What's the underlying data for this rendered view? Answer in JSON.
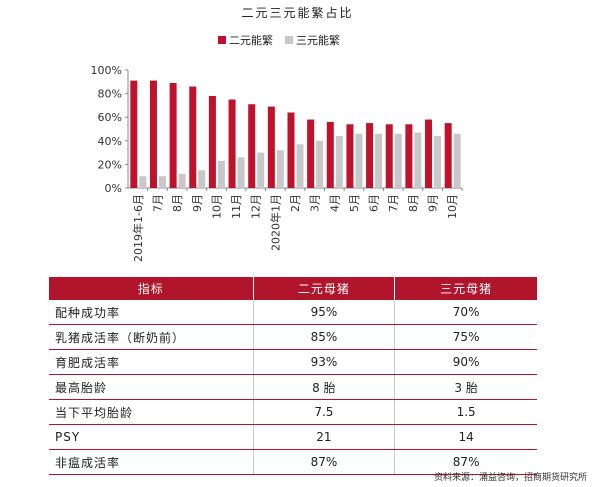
{
  "chart_data": {
    "type": "bar",
    "title": "二元三元能繁占比",
    "categories": [
      "2019年1-6月",
      "7月",
      "8月",
      "9月",
      "10月",
      "11月",
      "12月",
      "2020年1月",
      "2月",
      "3月",
      "4月",
      "5月",
      "6月",
      "7月",
      "8月",
      "9月",
      "10月"
    ],
    "series": [
      {
        "name": "二元能繁",
        "color": "#c0122c",
        "values": [
          91,
          91,
          89,
          86,
          78,
          75,
          71,
          69,
          64,
          58,
          56,
          54,
          55,
          54,
          54,
          58,
          55
        ]
      },
      {
        "name": "三元能繁",
        "color": "#c8c8c8",
        "values": [
          10,
          10,
          12,
          15,
          23,
          26,
          30,
          32,
          37,
          40,
          44,
          46,
          46,
          46,
          47,
          44,
          46
        ]
      }
    ],
    "ylim": [
      0,
      100
    ],
    "yticks": [
      "0%",
      "20%",
      "40%",
      "60%",
      "80%",
      "100%"
    ],
    "grid": false,
    "legend": "top"
  },
  "table": {
    "headers": [
      "指标",
      "二元母猪",
      "三元母猪"
    ],
    "rows": [
      [
        "配种成功率",
        "95%",
        "70%"
      ],
      [
        "乳猪成活率（断奶前）",
        "85%",
        "75%"
      ],
      [
        "育肥成活率",
        "93%",
        "90%"
      ],
      [
        "最高胎龄",
        "8 胎",
        "3 胎"
      ],
      [
        "当下平均胎龄",
        "7.5",
        "1.5"
      ],
      [
        "PSY",
        "21",
        "14"
      ],
      [
        "非瘟成活率",
        "87%",
        "87%"
      ]
    ]
  },
  "source": "资料来源：涌益咨询，招商期货研究所"
}
